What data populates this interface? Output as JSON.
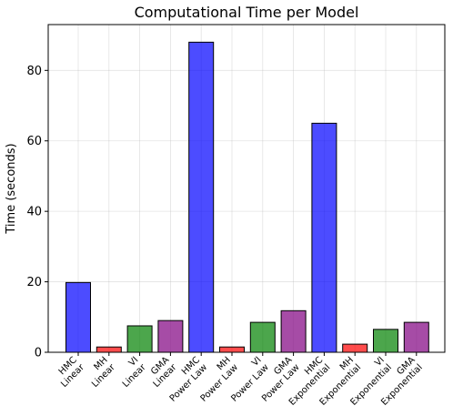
{
  "chart_data": {
    "type": "bar",
    "title": "Computational Time per Model",
    "xlabel": "",
    "ylabel": "Time (seconds)",
    "ylim": [
      0,
      93
    ],
    "yticks": [
      0,
      20,
      40,
      60,
      80
    ],
    "grid": true,
    "categories": [
      [
        "HMC",
        "Linear"
      ],
      [
        "MH",
        "Linear"
      ],
      [
        "VI",
        "Linear"
      ],
      [
        "GMA",
        "Linear"
      ],
      [
        "HMC",
        "Power Law"
      ],
      [
        "MH",
        "Power Law"
      ],
      [
        "VI",
        "Power Law"
      ],
      [
        "GMA",
        "Power Law"
      ],
      [
        "HMC",
        "Exponential"
      ],
      [
        "MH",
        "Exponential"
      ],
      [
        "VI",
        "Exponential"
      ],
      [
        "GMA",
        "Exponential"
      ]
    ],
    "values": [
      19.8,
      1.5,
      7.5,
      9.0,
      88.0,
      1.5,
      8.5,
      11.8,
      65.0,
      2.3,
      6.5,
      8.5
    ],
    "colors": [
      "#0000ff",
      "#ff0000",
      "#008000",
      "#800080",
      "#0000ff",
      "#ff0000",
      "#008000",
      "#800080",
      "#0000ff",
      "#ff0000",
      "#008000",
      "#800080"
    ]
  }
}
